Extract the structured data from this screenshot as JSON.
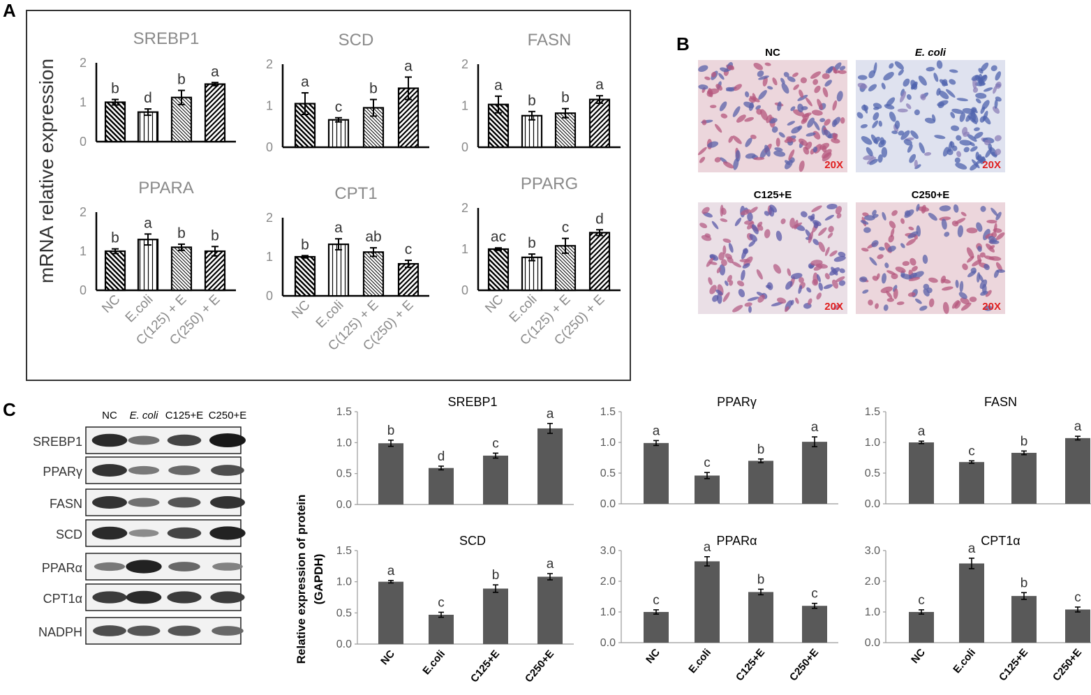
{
  "panel_labels": [
    "A",
    "B",
    "C"
  ],
  "chart_data": [
    {
      "type": "bar",
      "panel": "A",
      "title": "SREBP1",
      "categories": [
        "NC",
        "E.coli",
        "C(125) + E",
        "C(250) + E"
      ],
      "values": [
        1.0,
        0.75,
        1.12,
        1.46
      ],
      "errors": [
        0.07,
        0.08,
        0.18,
        0.04
      ],
      "significance": [
        "b",
        "d",
        "b",
        "a"
      ],
      "ylim": [
        0,
        2
      ],
      "yticks": [
        "0",
        "1",
        "2"
      ]
    },
    {
      "type": "bar",
      "panel": "A",
      "title": "SCD",
      "categories": [
        "NC",
        "E.coli",
        "C(125) + E",
        "C(250) + E"
      ],
      "values": [
        1.05,
        0.66,
        0.95,
        1.42
      ],
      "errors": [
        0.26,
        0.05,
        0.2,
        0.27
      ],
      "significance": [
        "a",
        "c",
        "b",
        "a"
      ],
      "ylim": [
        0,
        2
      ],
      "yticks": [
        "0",
        "1",
        "2"
      ]
    },
    {
      "type": "bar",
      "panel": "A",
      "title": "FASN",
      "categories": [
        "NC",
        "E.coli",
        "C(125) + E",
        "C(250) + E"
      ],
      "values": [
        1.03,
        0.76,
        0.82,
        1.15
      ],
      "errors": [
        0.2,
        0.1,
        0.11,
        0.09
      ],
      "significance": [
        "a",
        "b",
        "b",
        "a"
      ],
      "ylim": [
        0,
        2
      ],
      "yticks": [
        "0",
        "1",
        "2"
      ]
    },
    {
      "type": "bar",
      "panel": "A",
      "title": "PPARA",
      "categories": [
        "NC",
        "E.coli",
        "C(125) + E",
        "C(250) + E"
      ],
      "values": [
        1.0,
        1.3,
        1.1,
        1.0
      ],
      "errors": [
        0.06,
        0.14,
        0.08,
        0.12
      ],
      "significance": [
        "b",
        "a",
        "b",
        "b"
      ],
      "ylim": [
        0,
        2
      ],
      "yticks": [
        "0",
        "1",
        "2"
      ]
    },
    {
      "type": "bar",
      "panel": "A",
      "title": "CPT1",
      "categories": [
        "NC",
        "E.coli",
        "C(125) + E",
        "C(250) + E"
      ],
      "values": [
        1.0,
        1.32,
        1.12,
        0.82
      ],
      "errors": [
        0.03,
        0.14,
        0.11,
        0.09
      ],
      "significance": [
        "b",
        "a",
        "ab",
        "c"
      ],
      "ylim": [
        0,
        2
      ],
      "yticks": [
        "0",
        "1",
        "2"
      ]
    },
    {
      "type": "bar",
      "panel": "A",
      "title": "PPARG",
      "categories": [
        "NC",
        "E.coli",
        "C(125) + E",
        "C(250) + E"
      ],
      "values": [
        1.0,
        0.8,
        1.08,
        1.4
      ],
      "errors": [
        0.03,
        0.08,
        0.18,
        0.07
      ],
      "significance": [
        "ac",
        "b",
        "c",
        "d"
      ],
      "ylim": [
        0,
        2
      ],
      "yticks": [
        "0",
        "1",
        "2"
      ]
    },
    {
      "type": "bar",
      "panel": "C",
      "title": "SREBP1",
      "categories": [
        "NC",
        "E.coli",
        "C125+E",
        "C250+E"
      ],
      "values": [
        0.99,
        0.59,
        0.79,
        1.23
      ],
      "errors": [
        0.05,
        0.03,
        0.04,
        0.08
      ],
      "significance": [
        "b",
        "d",
        "c",
        "a"
      ],
      "ylim": [
        0,
        1.5
      ],
      "yticks": [
        "0.0",
        "0.5",
        "1.0",
        "1.5"
      ]
    },
    {
      "type": "bar",
      "panel": "C",
      "title": "PPARγ",
      "categories": [
        "NC",
        "E.coli",
        "C125+E",
        "C250+E"
      ],
      "values": [
        0.99,
        0.46,
        0.7,
        1.01
      ],
      "errors": [
        0.04,
        0.05,
        0.03,
        0.08
      ],
      "significance": [
        "a",
        "c",
        "b",
        "a"
      ],
      "ylim": [
        0,
        1.5
      ],
      "yticks": [
        "0.0",
        "0.5",
        "1.0",
        "1.5"
      ]
    },
    {
      "type": "bar",
      "panel": "C",
      "title": "FASN",
      "categories": [
        "NC",
        "E.coli",
        "C125+E",
        "C250+E"
      ],
      "values": [
        1.0,
        0.68,
        0.83,
        1.07
      ],
      "errors": [
        0.02,
        0.02,
        0.03,
        0.03
      ],
      "significance": [
        "a",
        "c",
        "b",
        "a"
      ],
      "ylim": [
        0,
        1.5
      ],
      "yticks": [
        "0.0",
        "0.5",
        "1.0",
        "1.5"
      ]
    },
    {
      "type": "bar",
      "panel": "C",
      "title": "SCD",
      "categories": [
        "NC",
        "E.coli",
        "C125+E",
        "C250+E"
      ],
      "values": [
        1.0,
        0.47,
        0.89,
        1.08
      ],
      "errors": [
        0.02,
        0.04,
        0.06,
        0.05
      ],
      "significance": [
        "a",
        "c",
        "b",
        "a"
      ],
      "ylim": [
        0,
        1.5
      ],
      "yticks": [
        "0.0",
        "0.5",
        "1.0",
        "1.5"
      ]
    },
    {
      "type": "bar",
      "panel": "C",
      "title": "PPARα",
      "categories": [
        "NC",
        "E.coli",
        "C125+E",
        "C250+E"
      ],
      "values": [
        1.0,
        2.65,
        1.65,
        1.2
      ],
      "errors": [
        0.07,
        0.15,
        0.09,
        0.08
      ],
      "significance": [
        "c",
        "a",
        "b",
        "c"
      ],
      "ylim": [
        0,
        3
      ],
      "yticks": [
        "0.0",
        "1.0",
        "2.0",
        "3.0"
      ]
    },
    {
      "type": "bar",
      "panel": "C",
      "title": "CPT1α",
      "categories": [
        "NC",
        "E.coli",
        "C125+E",
        "C250+E"
      ],
      "values": [
        1.0,
        2.58,
        1.52,
        1.08
      ],
      "errors": [
        0.07,
        0.17,
        0.11,
        0.08
      ],
      "significance": [
        "c",
        "a",
        "b",
        "c"
      ],
      "ylim": [
        0,
        3
      ],
      "yticks": [
        "0.0",
        "1.0",
        "2.0",
        "3.0"
      ]
    }
  ],
  "panel_a": {
    "ylabel": "mRNA relative expression",
    "categories": [
      "NC",
      "E.coli",
      "C(125) + E",
      "C(250) + E"
    ]
  },
  "panel_b": {
    "images": [
      {
        "title": "NC",
        "magnification": "20X",
        "stain": "red-pink"
      },
      {
        "title": "E. coli",
        "magnification": "20X",
        "stain": "blue"
      },
      {
        "title": "C125+E",
        "magnification": "20X",
        "stain": "mixed"
      },
      {
        "title": "C250+E",
        "magnification": "20X",
        "stain": "red-pink"
      }
    ]
  },
  "panel_c": {
    "ylabel_line1": "Relative expression of protein",
    "ylabel_line2": "(GAPDH)",
    "categories": [
      "NC",
      "E.coli",
      "C125+E",
      "C250+E"
    ],
    "western_blot": {
      "columns": [
        "NC",
        "E. coli",
        "C125+E",
        "C250+E"
      ],
      "rows": [
        {
          "label": "SREBP1",
          "intensity": [
            0.9,
            0.5,
            0.75,
            1.0
          ]
        },
        {
          "label": "PPARγ",
          "intensity": [
            0.85,
            0.45,
            0.55,
            0.7
          ]
        },
        {
          "label": "FASN",
          "intensity": [
            0.85,
            0.5,
            0.65,
            0.85
          ]
        },
        {
          "label": "SCD",
          "intensity": [
            0.9,
            0.35,
            0.75,
            0.95
          ]
        },
        {
          "label": "PPARα",
          "intensity": [
            0.45,
            0.95,
            0.55,
            0.4
          ]
        },
        {
          "label": "CPT1α",
          "intensity": [
            0.8,
            0.9,
            0.8,
            0.8
          ]
        },
        {
          "label": "NADPH",
          "intensity": [
            0.7,
            0.65,
            0.65,
            0.55
          ]
        }
      ]
    }
  },
  "colors": {
    "protein_bar": "#595959",
    "axis_gray": "#8a8a8a",
    "magnification_text": "#e02020",
    "stain_pink": "#d9a1b4",
    "stain_blue": "#5a6fb0"
  }
}
